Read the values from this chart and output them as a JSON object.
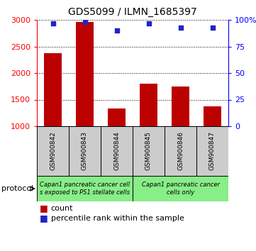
{
  "title": "GDS5099 / ILMN_1685397",
  "samples": [
    "GSM900842",
    "GSM900843",
    "GSM900844",
    "GSM900845",
    "GSM900846",
    "GSM900847"
  ],
  "counts": [
    2370,
    2960,
    1330,
    1800,
    1750,
    1380
  ],
  "percentiles": [
    97,
    98,
    90,
    97,
    93,
    93
  ],
  "ylim_left": [
    1000,
    3000
  ],
  "ylim_right": [
    0,
    100
  ],
  "yticks_left": [
    1000,
    1500,
    2000,
    2500,
    3000
  ],
  "yticks_right": [
    0,
    25,
    50,
    75,
    100
  ],
  "bar_color": "#bb0000",
  "dot_color": "#2222cc",
  "sample_box_color": "#cccccc",
  "protocol_color_1": "#88ee88",
  "protocol_color_2": "#88ee88",
  "protocol_label_1": "Capan1 pancreatic cancer cell\ns exposed to PS1 stellate cells",
  "protocol_label_2": "Capan1 pancreatic cancer\ncells only",
  "protocol_label": "protocol",
  "legend_count_label": "count",
  "legend_pct_label": "percentile rank within the sample",
  "grid_color": "black",
  "grid_linestyle": ":",
  "grid_linewidth": 0.7,
  "title_fontsize": 10,
  "tick_fontsize": 8,
  "sample_fontsize": 6.5,
  "protocol_fontsize": 6,
  "legend_fontsize": 8
}
